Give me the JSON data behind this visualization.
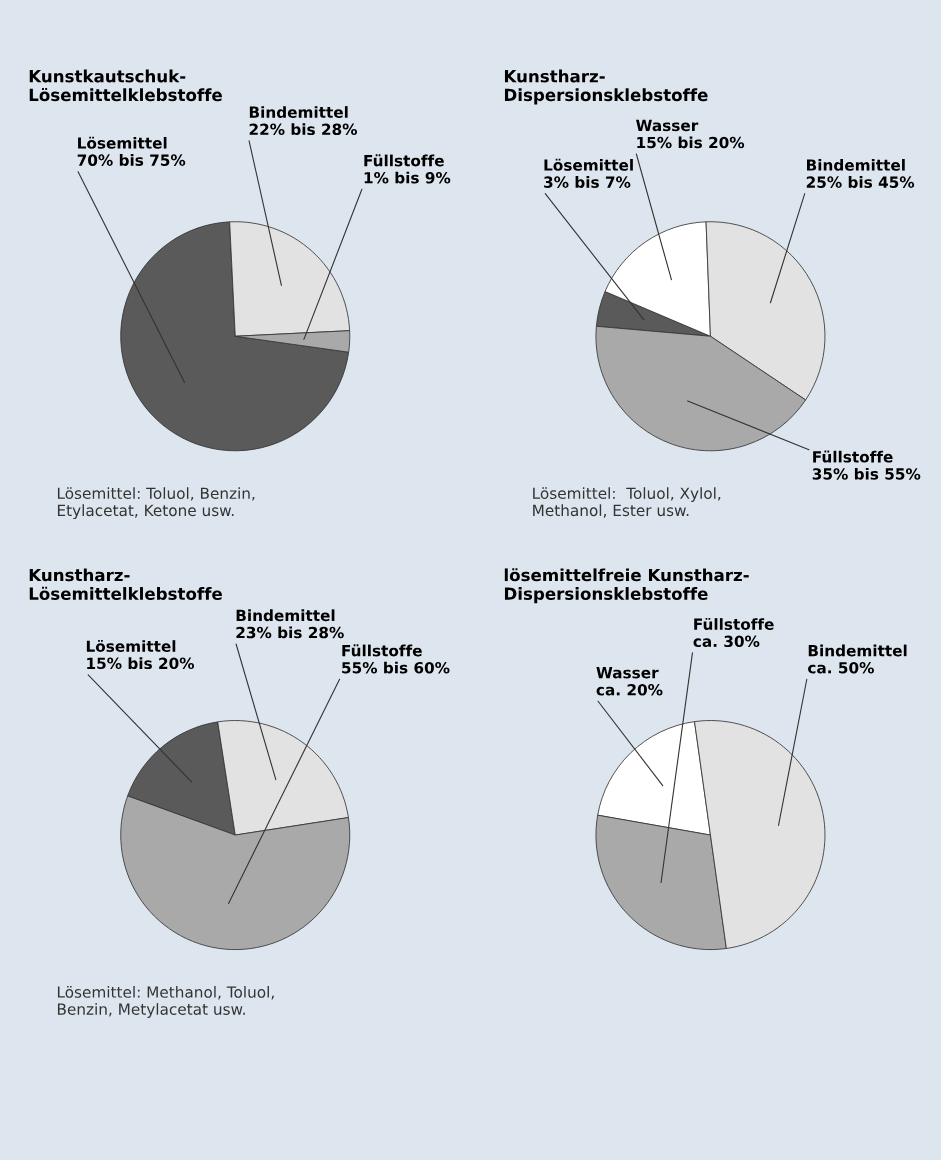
{
  "chart_data": [
    {
      "type": "pie",
      "title": "Kunstkautschuk-\nLösemittelklebstoffe",
      "categories": [
        "Lösemittel\n70% bis 75%",
        "Bindemittel\n22% bis 28%",
        "Füllstoffe\n1% bis 9%"
      ],
      "values": [
        72,
        25,
        3
      ],
      "colors": [
        "#5a5a5a",
        "#e2e2e2",
        "#a9a9a9"
      ],
      "annotations": [
        "Lösemittel: Toluol, Benzin,\nEtylacetat, Ketone usw."
      ]
    },
    {
      "type": "pie",
      "title": "Kunstharz-\nDispersionsklebstoffe",
      "categories": [
        "Lösemittel\n3% bis 7%",
        "Wasser\n15% bis 20%",
        "Bindemittel\n25% bis 45%",
        "Füllstoffe\n35% bis 55%"
      ],
      "values": [
        5,
        18,
        35,
        42
      ],
      "colors": [
        "#5a5a5a",
        "#ffffff",
        "#e2e2e2",
        "#a9a9a9"
      ],
      "annotations": [
        "Lösemittel:  Toluol, Xylol,\nMethanol, Ester usw."
      ]
    },
    {
      "type": "pie",
      "title": "Kunstharz-\nLösemittelklebstoffe",
      "categories": [
        "Lösemittel\n15% bis 20%",
        "Bindemittel\n23% bis 28%",
        "Füllstoffe\n55% bis 60%"
      ],
      "values": [
        17,
        25,
        58
      ],
      "colors": [
        "#5a5a5a",
        "#e2e2e2",
        "#a9a9a9"
      ],
      "annotations": [
        "Lösemittel: Methanol, Toluol,\nBenzin, Metylacetat usw."
      ]
    },
    {
      "type": "pie",
      "title": "lösemittelfreie Kunstharz-\nDispersionsklebstoffe",
      "categories": [
        "Wasser\nca. 20%",
        "Füllstoffe\nca. 30%",
        "Bindemittel\nca. 50%"
      ],
      "values": [
        20,
        30,
        50
      ],
      "colors": [
        "#ffffff",
        "#a9a9a9",
        "#e2e2e2"
      ]
    }
  ]
}
